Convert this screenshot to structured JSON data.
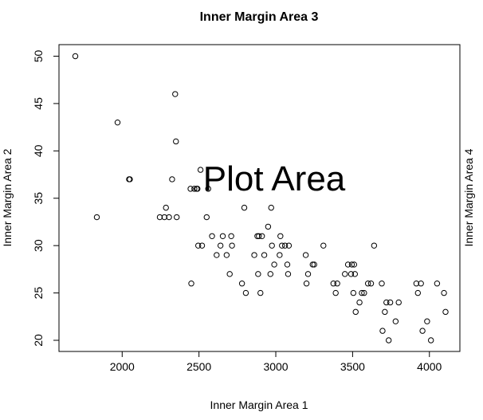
{
  "chart_data": {
    "type": "scatter",
    "title": "Inner Margin Area 3",
    "xlabel": "Inner Margin Area 1",
    "ylabel": "Inner Margin Area 2",
    "right_label": "Inner Margin Area 4",
    "annotation": "Plot Area",
    "xlim": [
      1700,
      4100
    ],
    "ylim": [
      20,
      50
    ],
    "xticks": [
      2000,
      2500,
      3000,
      3500,
      4000
    ],
    "yticks": [
      20,
      25,
      30,
      35,
      40,
      45,
      50
    ],
    "grid": false,
    "colors": {
      "axis": "#000000",
      "point": "#000000",
      "background": "#ffffff"
    },
    "x": [
      1695,
      1835,
      1970,
      2045,
      2050,
      2245,
      2275,
      2285,
      2305,
      2325,
      2345,
      2350,
      2355,
      2445,
      2450,
      2470,
      2485,
      2490,
      2495,
      2510,
      2520,
      2550,
      2560,
      2585,
      2615,
      2640,
      2655,
      2680,
      2700,
      2710,
      2715,
      2780,
      2795,
      2805,
      2860,
      2880,
      2885,
      2890,
      2900,
      2910,
      2925,
      2950,
      2965,
      2970,
      2975,
      2990,
      3025,
      3030,
      3040,
      3060,
      3075,
      3080,
      3085,
      3195,
      3200,
      3210,
      3240,
      3250,
      3310,
      3375,
      3390,
      3400,
      3450,
      3470,
      3490,
      3495,
      3505,
      3510,
      3515,
      3520,
      3545,
      3560,
      3575,
      3600,
      3620,
      3640,
      3690,
      3695,
      3710,
      3720,
      3735,
      3745,
      3780,
      3800,
      3915,
      3925,
      3945,
      3955,
      3985,
      4010,
      4050,
      4095,
      4105
    ],
    "y": [
      50,
      33,
      43,
      37,
      37,
      33,
      33,
      34,
      33,
      37,
      46,
      41,
      33,
      36,
      26,
      36,
      36,
      36,
      30,
      38,
      30,
      33,
      36,
      31,
      29,
      30,
      31,
      29,
      27,
      31,
      30,
      26,
      34,
      25,
      29,
      31,
      27,
      31,
      25,
      31,
      29,
      32,
      27,
      34,
      30,
      28,
      29,
      31,
      30,
      30,
      28,
      27,
      30,
      29,
      26,
      27,
      28,
      28,
      30,
      26,
      25,
      26,
      27,
      28,
      27,
      28,
      25,
      28,
      27,
      23,
      24,
      25,
      25,
      26,
      26,
      30,
      26,
      21,
      23,
      24,
      20,
      24,
      22,
      24,
      26,
      25,
      26,
      21,
      22,
      20,
      26,
      25,
      23
    ]
  }
}
